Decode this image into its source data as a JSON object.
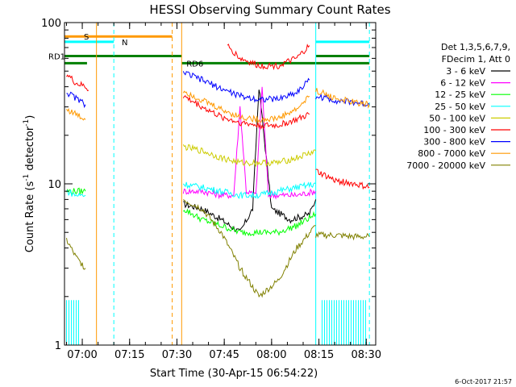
{
  "chart_data": {
    "type": "line",
    "title": "HESSI Observing Summary Count Rates",
    "xlabel": "Start Time (30-Apr-15 06:54:22)",
    "ylabel_main": "Count Rate (s",
    "ylabel_exp1": "-1",
    "ylabel_mid": " detector",
    "ylabel_exp2": "-1",
    "ylabel_end": ")",
    "yscale": "log",
    "ylim": [
      1,
      100
    ],
    "xlim": [
      "06:54:22",
      "08:33:00"
    ],
    "x_ticks": [
      "07:00",
      "07:15",
      "07:30",
      "07:45",
      "08:00",
      "08:15",
      "08:30"
    ],
    "y_ticks": [
      "1",
      "10",
      "100"
    ],
    "footer_date": "6-Oct-2017 21:57",
    "legend": {
      "header1": "Det 1,3,5,6,7,9,",
      "header2": "FDecim 1, Att 0",
      "entries": [
        {
          "label": "3 - 6 keV",
          "color": "#000000"
        },
        {
          "label": "6 - 12 keV",
          "color": "#ff00ff"
        },
        {
          "label": "12 - 25 keV",
          "color": "#00ff00"
        },
        {
          "label": "25 - 50 keV",
          "color": "#00ffff"
        },
        {
          "label": "50 - 100 keV",
          "color": "#cccc00"
        },
        {
          "label": "100 - 300 keV",
          "color": "#ff0000"
        },
        {
          "label": "300 - 800 keV",
          "color": "#0000ff"
        },
        {
          "label": "800 - 7000 keV",
          "color": "#ff9900"
        },
        {
          "label": "7000 - 20000 keV",
          "color": "#808000"
        }
      ]
    },
    "flag_labels": {
      "saa": "S",
      "night": "N",
      "rd1": "RD1",
      "rd6": "RD6"
    },
    "vertical_markers": [
      {
        "time": "07:04:30",
        "color": "#ff9900",
        "style": "solid"
      },
      {
        "time": "07:10:00",
        "color": "#00ffff",
        "style": "dashed"
      },
      {
        "time": "07:28:30",
        "color": "#ff9900",
        "style": "dashed"
      },
      {
        "time": "07:31:30",
        "color": "#ff9900",
        "style": "solid"
      },
      {
        "time": "08:14:00",
        "color": "#00ffff",
        "style": "solid"
      },
      {
        "time": "08:31:00",
        "color": "#00ffff",
        "style": "dashed"
      }
    ],
    "flag_bars": [
      {
        "name": "SAA",
        "color": "#ff9900",
        "y": 82,
        "spans": [
          [
            "06:54:22",
            "07:28:30"
          ]
        ]
      },
      {
        "name": "Night",
        "color": "#00ffff",
        "y": 76,
        "spans": [
          [
            "06:54:22",
            "07:10:00"
          ],
          [
            "08:14:00",
            "08:31:00"
          ]
        ]
      },
      {
        "name": "RD1",
        "color": "#008000",
        "y": 62,
        "spans": [
          [
            "06:54:22",
            "07:31:30"
          ],
          [
            "08:14:00",
            "08:31:00"
          ]
        ]
      },
      {
        "name": "RD6",
        "color": "#008000",
        "y": 56,
        "spans": [
          [
            "06:54:22",
            "07:01:30"
          ],
          [
            "07:31:30",
            "08:31:00"
          ]
        ]
      }
    ],
    "series": [
      {
        "name": "3 - 6 keV",
        "color": "#000000",
        "segments": [
          {
            "x": [
              "07:32",
              "07:38",
              "07:44",
              "07:50",
              "07:54",
              "07:56",
              "08:00",
              "08:06",
              "08:12",
              "08:14"
            ],
            "y": [
              7.5,
              7.0,
              6.0,
              5.0,
              7.0,
              40,
              7.0,
              6.0,
              6.5,
              8.0
            ]
          }
        ]
      },
      {
        "name": "6 - 12 keV",
        "color": "#ff00ff",
        "segments": [
          {
            "x": [
              "07:32",
              "07:38",
              "07:44",
              "07:48",
              "07:50",
              "07:52",
              "07:55",
              "07:57",
              "07:59",
              "08:02",
              "08:08",
              "08:14"
            ],
            "y": [
              9,
              9,
              8.5,
              8.5,
              30,
              9,
              8.5,
              40,
              8.5,
              8.5,
              8.5,
              9
            ]
          }
        ]
      },
      {
        "name": "12 - 25 keV",
        "color": "#00ff00",
        "segments": [
          {
            "x": [
              "06:55",
              "07:00",
              "07:01"
            ],
            "y": [
              9,
              9,
              9
            ]
          },
          {
            "x": [
              "07:32",
              "07:38",
              "07:44",
              "07:50",
              "07:56",
              "08:02",
              "08:08",
              "08:14"
            ],
            "y": [
              7.0,
              6.0,
              5.5,
              5.0,
              5.0,
              5.0,
              5.5,
              6.5
            ]
          }
        ]
      },
      {
        "name": "25 - 50 keV",
        "color": "#00ffff",
        "segments": [
          {
            "x": [
              "06:55",
              "06:58",
              "07:01"
            ],
            "y": [
              9,
              8.5,
              8.5
            ]
          },
          {
            "x": [
              "07:32",
              "07:38",
              "07:44",
              "07:50",
              "07:56",
              "08:02",
              "08:08",
              "08:14"
            ],
            "y": [
              10,
              9.5,
              9,
              8.5,
              8.5,
              9,
              9.5,
              10
            ]
          }
        ]
      },
      {
        "name": "50 - 100 keV",
        "color": "#cccc00",
        "segments": [
          {
            "x": [
              "07:32",
              "07:38",
              "07:44",
              "07:50",
              "07:56",
              "08:02",
              "08:08",
              "08:14"
            ],
            "y": [
              17,
              16,
              14.5,
              13.5,
              13.5,
              13.5,
              14.5,
              16
            ]
          }
        ]
      },
      {
        "name": "100 - 300 keV",
        "color": "#ff0000",
        "segments": [
          {
            "x": [
              "06:55",
              "06:58",
              "07:01",
              "07:02"
            ],
            "y": [
              48,
              42,
              40,
              38
            ]
          },
          {
            "x": [
              "07:32",
              "07:38",
              "07:44",
              "07:50",
              "07:56",
              "08:02",
              "08:08",
              "08:12"
            ],
            "y": [
              35,
              30,
              26,
              24,
              23,
              23,
              25,
              27
            ]
          },
          {
            "x": [
              "07:46",
              "07:50",
              "07:56",
              "08:02",
              "08:08",
              "08:12"
            ],
            "y": [
              72,
              60,
              54,
              54,
              60,
              72
            ]
          },
          {
            "x": [
              "08:14",
              "08:20",
              "08:26",
              "08:31"
            ],
            "y": [
              12,
              10.5,
              10,
              9.5
            ]
          }
        ]
      },
      {
        "name": "300 - 800 keV",
        "color": "#0000ff",
        "segments": [
          {
            "x": [
              "06:55",
              "06:58",
              "07:01"
            ],
            "y": [
              37,
              34,
              31
            ]
          },
          {
            "x": [
              "07:32",
              "07:38",
              "07:44",
              "07:50",
              "07:56",
              "08:02",
              "08:08",
              "08:12"
            ],
            "y": [
              49,
              44,
              39,
              35,
              33.5,
              33.5,
              37,
              44
            ]
          },
          {
            "x": [
              "08:14",
              "08:20",
              "08:26",
              "08:31"
            ],
            "y": [
              35,
              33,
              32,
              31
            ]
          }
        ]
      },
      {
        "name": "800 - 7000 keV",
        "color": "#ff9900",
        "segments": [
          {
            "x": [
              "06:55",
              "06:58",
              "07:01"
            ],
            "y": [
              29,
              27,
              25
            ]
          },
          {
            "x": [
              "07:32",
              "07:38",
              "07:44",
              "07:50",
              "07:56",
              "08:02",
              "08:08",
              "08:12"
            ],
            "y": [
              38,
              33,
              29,
              26,
              25,
              25.5,
              29,
              35
            ]
          },
          {
            "x": [
              "08:14",
              "08:20",
              "08:26",
              "08:31"
            ],
            "y": [
              38,
              34,
              32,
              31
            ]
          }
        ]
      },
      {
        "name": "7000 - 20000 keV",
        "color": "#808000",
        "segments": [
          {
            "x": [
              "06:55",
              "06:58",
              "07:01"
            ],
            "y": [
              4.5,
              3.5,
              3.0
            ]
          },
          {
            "x": [
              "07:32",
              "07:38",
              "07:44",
              "07:50",
              "07:56",
              "08:02",
              "08:08",
              "08:14"
            ],
            "y": [
              8,
              7,
              5,
              3,
              2,
              2.5,
              4,
              5.5
            ]
          },
          {
            "x": [
              "08:14",
              "08:20",
              "08:26",
              "08:31"
            ],
            "y": [
              4.8,
              4.8,
              4.7,
              4.7
            ]
          }
        ]
      }
    ],
    "min_bars": {
      "color": "#00ffff",
      "spans": [
        [
          "06:55",
          "06:59"
        ],
        [
          "08:16",
          "08:30"
        ]
      ],
      "y": [
        1,
        1.9
      ]
    }
  }
}
